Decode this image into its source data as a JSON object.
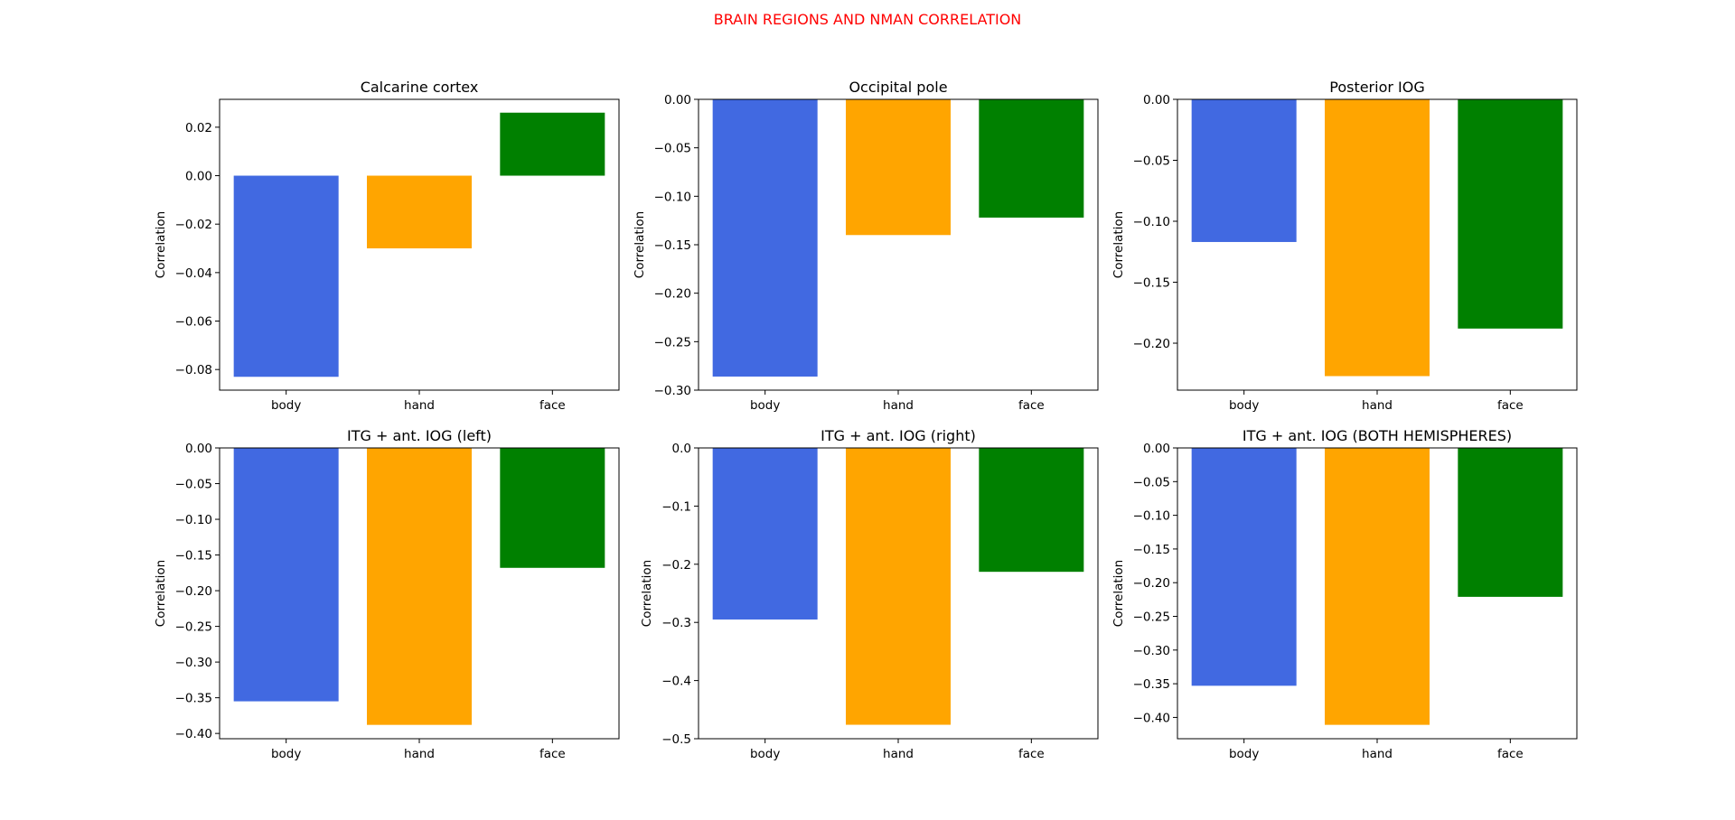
{
  "suptitle": "BRAIN REGIONS AND NMAN CORRELATION",
  "colors": {
    "body": "#4169E1",
    "hand": "#FFA500",
    "face": "#008000",
    "suptitle": "#FF0000"
  },
  "chart_data": [
    {
      "type": "bar",
      "title": "Calcarine cortex",
      "xlabel": "",
      "ylabel": "Correlation",
      "categories": [
        "body",
        "hand",
        "face"
      ],
      "values": [
        -0.083,
        -0.03,
        0.026
      ],
      "ylim": [
        -0.0885,
        0.0315
      ],
      "yticks": [
        -0.08,
        -0.06,
        -0.04,
        -0.02,
        0.0,
        0.02
      ],
      "ytick_labels": [
        "−0.08",
        "−0.06",
        "−0.04",
        "−0.02",
        "0.00",
        "0.02"
      ]
    },
    {
      "type": "bar",
      "title": "Occipital pole",
      "xlabel": "",
      "ylabel": "Correlation",
      "categories": [
        "body",
        "hand",
        "face"
      ],
      "values": [
        -0.286,
        -0.14,
        -0.122
      ],
      "ylim": [
        -0.3,
        0.0
      ],
      "yticks": [
        -0.3,
        -0.25,
        -0.2,
        -0.15,
        -0.1,
        -0.05,
        0.0
      ],
      "ytick_labels": [
        "−0.30",
        "−0.25",
        "−0.20",
        "−0.15",
        "−0.10",
        "−0.05",
        "0.00"
      ]
    },
    {
      "type": "bar",
      "title": "Posterior IOG",
      "xlabel": "",
      "ylabel": "Correlation",
      "categories": [
        "body",
        "hand",
        "face"
      ],
      "values": [
        -0.117,
        -0.227,
        -0.188
      ],
      "ylim": [
        -0.2385,
        0.0
      ],
      "yticks": [
        -0.2,
        -0.15,
        -0.1,
        -0.05,
        0.0
      ],
      "ytick_labels": [
        "−0.20",
        "−0.15",
        "−0.10",
        "−0.05",
        "0.00"
      ]
    },
    {
      "type": "bar",
      "title": "ITG + ant. IOG (left)",
      "xlabel": "",
      "ylabel": "Correlation",
      "categories": [
        "body",
        "hand",
        "face"
      ],
      "values": [
        -0.355,
        -0.388,
        -0.168
      ],
      "ylim": [
        -0.4074,
        0.0
      ],
      "yticks": [
        -0.4,
        -0.35,
        -0.3,
        -0.25,
        -0.2,
        -0.15,
        -0.1,
        -0.05,
        0.0
      ],
      "ytick_labels": [
        "−0.40",
        "−0.35",
        "−0.30",
        "−0.25",
        "−0.20",
        "−0.15",
        "−0.10",
        "−0.05",
        "0.00"
      ]
    },
    {
      "type": "bar",
      "title": "ITG + ant. IOG (right)",
      "xlabel": "",
      "ylabel": "Correlation",
      "categories": [
        "body",
        "hand",
        "face"
      ],
      "values": [
        -0.295,
        -0.476,
        -0.213
      ],
      "ylim": [
        -0.5,
        0.0
      ],
      "yticks": [
        -0.5,
        -0.4,
        -0.3,
        -0.2,
        -0.1,
        0.0
      ],
      "ytick_labels": [
        "−0.5",
        "−0.4",
        "−0.3",
        "−0.2",
        "−0.1",
        "0.0"
      ]
    },
    {
      "type": "bar",
      "title": "ITG + ant. IOG (BOTH HEMISPHERES)",
      "xlabel": "",
      "ylabel": "Correlation",
      "categories": [
        "body",
        "hand",
        "face"
      ],
      "values": [
        -0.353,
        -0.411,
        -0.221
      ],
      "ylim": [
        -0.4316,
        0.0
      ],
      "yticks": [
        -0.4,
        -0.35,
        -0.3,
        -0.25,
        -0.2,
        -0.15,
        -0.1,
        -0.05,
        0.0
      ],
      "ytick_labels": [
        "−0.40",
        "−0.35",
        "−0.30",
        "−0.25",
        "−0.20",
        "−0.15",
        "−0.10",
        "−0.05",
        "0.00"
      ]
    }
  ]
}
